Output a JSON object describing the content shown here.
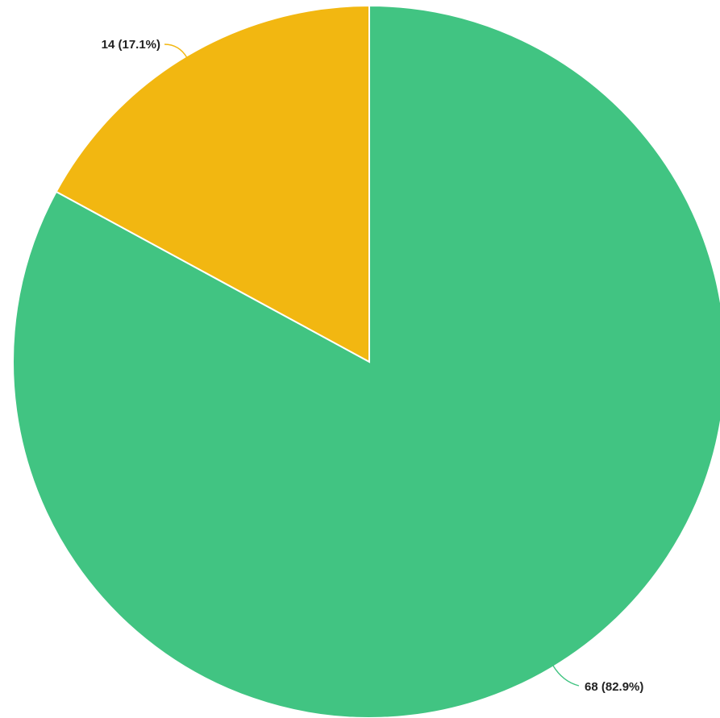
{
  "chart_data": {
    "type": "pie",
    "slices": [
      {
        "value": 68,
        "percent": 82.9,
        "label": "68 (82.9%)",
        "color": "#41c482"
      },
      {
        "value": 14,
        "percent": 17.1,
        "label": "14 (17.1%)",
        "color": "#f2b711"
      }
    ],
    "start_angle": "12 o'clock",
    "direction": "clockwise",
    "legend": "none",
    "title": ""
  }
}
